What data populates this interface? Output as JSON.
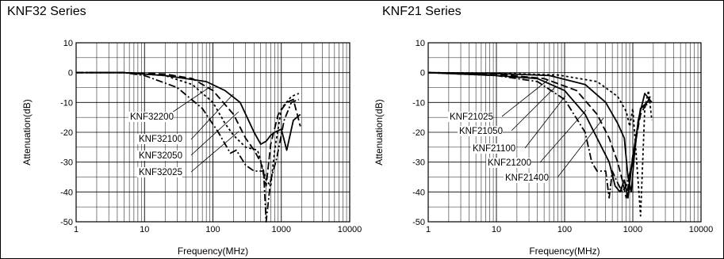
{
  "chart_data": [
    {
      "type": "line",
      "title": "KNF32 Series",
      "xlabel": "Frequency(MHz)",
      "ylabel": "Attenuation(dB)",
      "xscale": "log",
      "xlim": [
        1,
        10000
      ],
      "ylim": [
        -50,
        10
      ],
      "x_ticks": [
        "1",
        "10",
        "100",
        "1000",
        "10000"
      ],
      "y_ticks": [
        "10",
        "0",
        "-10",
        "-20",
        "-30",
        "-40",
        "-50"
      ],
      "grid": true,
      "series": [
        {
          "name": "KNF32200",
          "dash": "solid",
          "x": [
            1,
            5,
            20,
            80,
            150,
            250,
            400,
            500,
            600,
            700,
            800,
            1000,
            1200,
            1500,
            1900
          ],
          "y": [
            0,
            0,
            -1,
            -3,
            -6,
            -10,
            -20,
            -24,
            -23,
            -21,
            -20,
            -19,
            -26,
            -16,
            -14
          ]
        },
        {
          "name": "KNF32100",
          "dash": "long-dash",
          "x": [
            1,
            5,
            20,
            50,
            100,
            200,
            300,
            400,
            500,
            600,
            700,
            900,
            1200,
            1500,
            1900
          ],
          "y": [
            0,
            0,
            -0.5,
            -2,
            -6,
            -14,
            -22,
            -26,
            -30,
            -38,
            -24,
            -14,
            -10,
            -9,
            -18
          ]
        },
        {
          "name": "KNF32050",
          "dash": "short-dash",
          "x": [
            1,
            5,
            20,
            50,
            100,
            150,
            200,
            300,
            450,
            600,
            700,
            800,
            1000,
            1400,
            1800
          ],
          "y": [
            0,
            0,
            -1,
            -4,
            -10,
            -17,
            -21,
            -25,
            -26,
            -36,
            -38,
            -26,
            -12,
            -8,
            -7
          ]
        },
        {
          "name": "KNF32025",
          "dash": "dash-dot",
          "x": [
            1,
            5,
            10,
            30,
            70,
            120,
            180,
            220,
            300,
            400,
            550,
            600,
            700,
            850,
            1100,
            1400,
            1800
          ],
          "y": [
            0,
            0,
            -1,
            -5,
            -12,
            -20,
            -27,
            -26,
            -31,
            -33,
            -33,
            -50,
            -36,
            -29,
            -16,
            -10,
            -9
          ]
        }
      ]
    },
    {
      "type": "line",
      "title": "KNF21 Series",
      "xlabel": "Frequency(MHz)",
      "ylabel": "Attenuation(dB)",
      "xscale": "log",
      "xlim": [
        1,
        10000
      ],
      "ylim": [
        -50,
        10
      ],
      "x_ticks": [
        "1",
        "10",
        "100",
        "1000",
        "10000"
      ],
      "y_ticks": [
        "10",
        "0",
        "-10",
        "-20",
        "-30",
        "-40",
        "-50"
      ],
      "grid": true,
      "series": [
        {
          "name": "KNF21025",
          "dash": "dash-dot",
          "x": [
            1,
            10,
            40,
            100,
            200,
            250,
            300,
            400,
            450,
            500,
            600,
            700,
            800,
            1000,
            1300,
            1800
          ],
          "y": [
            0,
            -1,
            -3,
            -9,
            -20,
            -30,
            -33,
            -33,
            -42,
            -33,
            -37,
            -40,
            -38,
            -30,
            -12,
            -10
          ]
        },
        {
          "name": "KNF21050",
          "dash": "solid",
          "x": [
            1,
            10,
            40,
            100,
            200,
            300,
            450,
            550,
            650,
            750,
            850,
            1000,
            1300,
            1800
          ],
          "y": [
            0,
            -1,
            -2,
            -6,
            -14,
            -22,
            -30,
            -38,
            -40,
            -36,
            -42,
            -28,
            -12,
            -9
          ]
        },
        {
          "name": "KNF21100",
          "dash": "long-dash",
          "x": [
            1,
            10,
            50,
            150,
            300,
            450,
            600,
            700,
            800,
            900,
            1000,
            1300,
            1800
          ],
          "y": [
            0,
            -0.5,
            -2,
            -6,
            -14,
            -22,
            -30,
            -36,
            -42,
            -35,
            -28,
            -14,
            -8
          ]
        },
        {
          "name": "KNF21200",
          "dash": "solid",
          "x": [
            1,
            10,
            60,
            200,
            400,
            600,
            750,
            850,
            950,
            1050,
            1200,
            1500,
            1900
          ],
          "y": [
            0,
            -0.3,
            -1,
            -4,
            -10,
            -17,
            -22,
            -35,
            -40,
            -28,
            -16,
            -7,
            -10
          ]
        },
        {
          "name": "KNF21400",
          "dash": "short-dash",
          "x": [
            1,
            10,
            80,
            300,
            600,
            800,
            900,
            1000,
            1100,
            1300,
            1500,
            1700,
            1900
          ],
          "y": [
            0,
            -0.2,
            -0.8,
            -3,
            -8,
            -13,
            -18,
            -12,
            -25,
            -48,
            -12,
            -6,
            -16
          ]
        }
      ]
    }
  ]
}
